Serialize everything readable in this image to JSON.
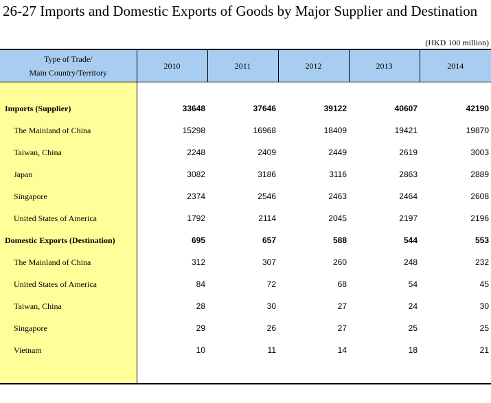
{
  "title": "26-27  Imports and Domestic Exports of Goods by Major Supplier and Destination",
  "unit": "(HKD 100 million)",
  "header": {
    "label_line1": "Type of Trade/",
    "label_line2": "Main Country/Territory",
    "years": [
      "2010",
      "2011",
      "2012",
      "2013",
      "2014"
    ]
  },
  "rows": [
    {
      "label": "Imports (Supplier)",
      "bold": true,
      "values": [
        "33648",
        "37646",
        "39122",
        "40607",
        "42190"
      ]
    },
    {
      "label": "The Mainland of China",
      "bold": false,
      "values": [
        "15298",
        "16968",
        "18409",
        "19421",
        "19870"
      ]
    },
    {
      "label": "Taiwan, China",
      "bold": false,
      "values": [
        "2248",
        "2409",
        "2449",
        "2619",
        "3003"
      ]
    },
    {
      "label": "Japan",
      "bold": false,
      "values": [
        "3082",
        "3186",
        "3116",
        "2863",
        "2889"
      ]
    },
    {
      "label": "Singapore",
      "bold": false,
      "values": [
        "2374",
        "2546",
        "2463",
        "2464",
        "2608"
      ]
    },
    {
      "label": "United States of America",
      "bold": false,
      "values": [
        "1792",
        "2114",
        "2045",
        "2197",
        "2196"
      ]
    },
    {
      "label": "Domestic Exports (Destination)",
      "bold": true,
      "values": [
        "695",
        "657",
        "588",
        "544",
        "553"
      ]
    },
    {
      "label": "The Mainland of China",
      "bold": false,
      "values": [
        "312",
        "307",
        "260",
        "248",
        "232"
      ]
    },
    {
      "label": "United States of America",
      "bold": false,
      "values": [
        "84",
        "72",
        "68",
        "54",
        "45"
      ]
    },
    {
      "label": "Taiwan, China",
      "bold": false,
      "values": [
        "28",
        "30",
        "27",
        "24",
        "30"
      ]
    },
    {
      "label": "Singapore",
      "bold": false,
      "values": [
        "29",
        "26",
        "27",
        "25",
        "25"
      ]
    },
    {
      "label": "Vietnam",
      "bold": false,
      "values": [
        "10",
        "11",
        "14",
        "18",
        "21"
      ]
    }
  ]
}
